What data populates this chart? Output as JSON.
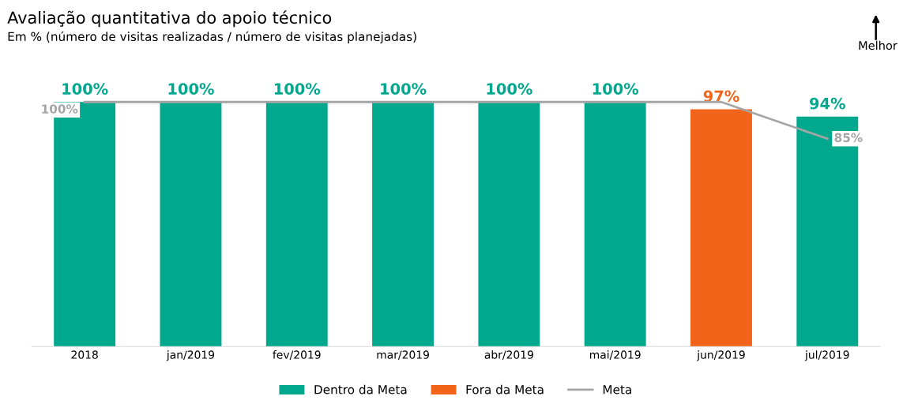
{
  "chart_data": {
    "type": "bar",
    "title": "Avaliação quantitativa do apoio técnico",
    "subtitle": "Em % (número de visitas realizadas / número de visitas planejadas)",
    "annotations": [
      "Melhor"
    ],
    "categories": [
      "2018",
      "jan/2019",
      "fev/2019",
      "mar/2019",
      "abr/2019",
      "mai/2019",
      "jun/2019",
      "jul/2019"
    ],
    "series": [
      {
        "name": "Dentro da Meta",
        "color": "#00a88e",
        "values": [
          100,
          100,
          100,
          100,
          100,
          100,
          null,
          94
        ],
        "value_labels": [
          "100%",
          "100%",
          "100%",
          "100%",
          "100%",
          "100%",
          null,
          "94%"
        ]
      },
      {
        "name": "Fora da Meta",
        "color": "#f26419",
        "values": [
          null,
          null,
          null,
          null,
          null,
          null,
          97,
          null
        ],
        "value_labels": [
          null,
          null,
          null,
          null,
          null,
          null,
          "97%",
          null
        ]
      },
      {
        "name": "Meta",
        "type": "line",
        "color": "#a5a5a5",
        "values": [
          100,
          100,
          100,
          100,
          100,
          100,
          100,
          85
        ],
        "value_labels": [
          "100%",
          null,
          null,
          null,
          null,
          null,
          null,
          "85%"
        ]
      }
    ],
    "tick_labels": "x",
    "grid": false,
    "legend": "bottom",
    "marker": "none",
    "line_style": "solid"
  }
}
